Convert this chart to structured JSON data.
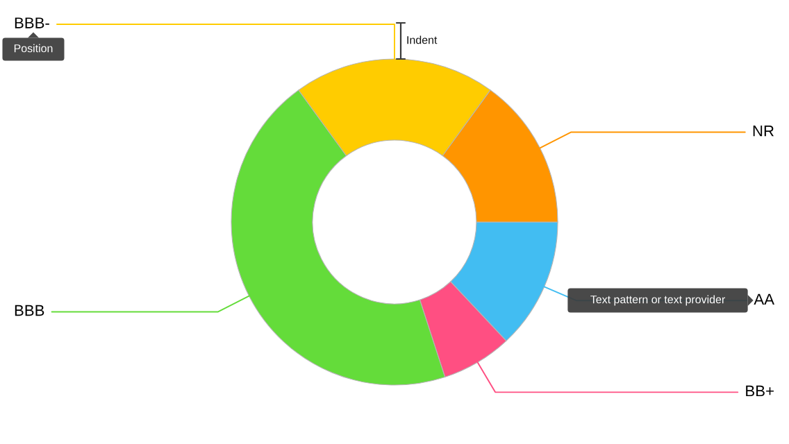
{
  "chart_data": {
    "type": "donut",
    "categories": [
      "AA",
      "BB+",
      "BBB",
      "BBB-",
      "NR"
    ],
    "values": [
      13,
      7,
      45,
      20,
      15
    ],
    "colors": [
      "#42bdf2",
      "#ff4f82",
      "#64dc3a",
      "#ffcc00",
      "#ff9500"
    ],
    "annotations": [
      "Position",
      "Indent",
      "Text pattern or text provider"
    ]
  }
}
